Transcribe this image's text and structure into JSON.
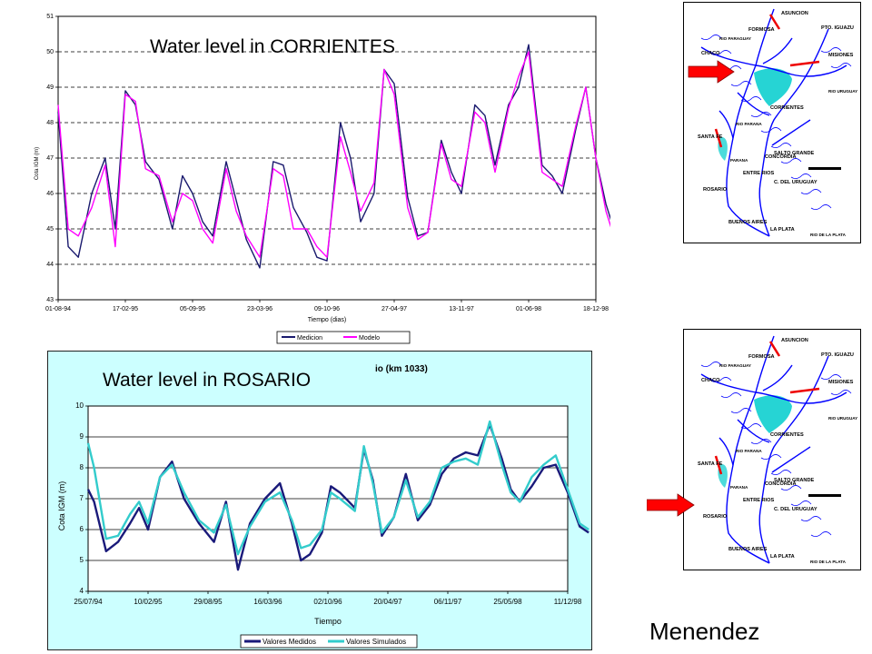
{
  "caption": "Menendez",
  "maps": {
    "labels": [
      "ASUNCION",
      "FORMOSA",
      "PTO. IGUAZU",
      "CHACO",
      "MISIONES",
      "CORRIENTES",
      "SANTA FE",
      "ENTRE RIOS",
      "SALTO GRANDE",
      "CONCORDIA",
      "C. DEL URUGUAY",
      "ROSARIO",
      "BUENOS AIRES",
      "LA PLATA",
      "PARANA",
      "RIO URUGUAY",
      "RIO PARAGUAY",
      "RIO PARANA",
      "RIO DE LA PLATA"
    ],
    "arrow_color": "#ff0000",
    "river_color": "#0000ff",
    "marsh_color": "#00cccc"
  },
  "chart_data": [
    {
      "type": "line",
      "title": "Water level in CORRIENTES",
      "xlabel": "Tiempo (dias)",
      "ylabel": "Cota IGM (m)",
      "xticks": [
        "01-08-94",
        "17-02-95",
        "05-09-95",
        "23-03-96",
        "09-10-96",
        "27-04-97",
        "13-11-97",
        "01-06-98",
        "18-12-98"
      ],
      "ylim": [
        43,
        51
      ],
      "yticks": [
        43,
        44,
        45,
        46,
        47,
        48,
        49,
        50,
        51
      ],
      "grid": "dashed horizontal",
      "legend_position": "bottom-center",
      "x": [
        0,
        0.15,
        0.3,
        0.5,
        0.7,
        0.85,
        1.0,
        1.15,
        1.3,
        1.5,
        1.7,
        1.85,
        2.0,
        2.15,
        2.3,
        2.5,
        2.65,
        2.8,
        3.0,
        3.2,
        3.35,
        3.5,
        3.7,
        3.85,
        4.0,
        4.2,
        4.35,
        4.5,
        4.7,
        4.85,
        5.0,
        5.2,
        5.35,
        5.5,
        5.7,
        5.85,
        6.0,
        6.2,
        6.35,
        6.5,
        6.7,
        6.85,
        7.0,
        7.2,
        7.35,
        7.5,
        7.7,
        7.85,
        8.0,
        8.15,
        8.3,
        8.45
      ],
      "series": [
        {
          "name": "Medicion",
          "color": "#1a1a6e",
          "values": [
            48.3,
            44.5,
            44.2,
            46.0,
            47.0,
            45.0,
            48.9,
            48.5,
            46.9,
            46.4,
            45.0,
            46.5,
            46.0,
            45.2,
            44.8,
            46.9,
            45.8,
            44.7,
            43.9,
            46.9,
            46.8,
            45.6,
            44.9,
            44.2,
            44.1,
            48.0,
            47.0,
            45.2,
            46.0,
            49.5,
            49.1,
            45.9,
            44.8,
            44.9,
            47.5,
            46.6,
            46.0,
            48.5,
            48.2,
            46.8,
            48.5,
            49.0,
            50.2,
            46.8,
            46.5,
            46.0,
            47.8,
            49.0,
            47.0,
            45.7,
            44.8,
            45.6
          ]
        },
        {
          "name": "Modelo",
          "color": "#ff00ff",
          "values": [
            48.5,
            45.0,
            44.8,
            45.6,
            46.8,
            44.5,
            48.8,
            48.6,
            46.7,
            46.5,
            45.2,
            46.0,
            45.8,
            45.0,
            44.6,
            46.7,
            45.5,
            44.8,
            44.2,
            46.7,
            46.5,
            45.0,
            45.0,
            44.5,
            44.2,
            47.6,
            46.6,
            45.5,
            46.3,
            49.5,
            48.8,
            45.6,
            44.7,
            44.9,
            47.4,
            46.4,
            46.2,
            48.3,
            48.0,
            46.6,
            48.4,
            49.3,
            50.0,
            46.6,
            46.4,
            46.2,
            47.9,
            49.0,
            47.0,
            45.5,
            44.6,
            45.3
          ]
        }
      ]
    },
    {
      "type": "line",
      "title": "Water level in ROSARIO",
      "subtitle": "io (km 1033)",
      "xlabel": "Tiempo",
      "ylabel": "Cota IGM (m)",
      "xticks": [
        "25/07/94",
        "10/02/95",
        "29/08/95",
        "16/03/96",
        "02/10/96",
        "20/04/97",
        "06/11/97",
        "25/05/98",
        "11/12/98"
      ],
      "ylim": [
        4,
        10
      ],
      "yticks": [
        4,
        5,
        6,
        7,
        8,
        9,
        10
      ],
      "grid": "solid horizontal",
      "legend_position": "bottom-center",
      "x": [
        0,
        0.1,
        0.3,
        0.5,
        0.7,
        0.85,
        1.0,
        1.2,
        1.4,
        1.6,
        1.85,
        2.1,
        2.3,
        2.5,
        2.7,
        2.95,
        3.2,
        3.4,
        3.55,
        3.7,
        3.9,
        4.05,
        4.2,
        4.45,
        4.6,
        4.75,
        4.9,
        5.1,
        5.3,
        5.5,
        5.7,
        5.9,
        6.1,
        6.3,
        6.5,
        6.7,
        6.9,
        7.05,
        7.2,
        7.4,
        7.6,
        7.8,
        8.0,
        8.2,
        8.35
      ],
      "series": [
        {
          "name": "Valores Medidos",
          "color": "#1a1a7a",
          "values": [
            7.3,
            6.9,
            5.3,
            5.6,
            6.2,
            6.7,
            6.0,
            7.7,
            8.2,
            7.0,
            6.2,
            5.6,
            6.9,
            4.7,
            6.2,
            7.0,
            7.5,
            6.2,
            5.0,
            5.2,
            5.9,
            7.4,
            7.2,
            6.7,
            8.6,
            7.6,
            5.8,
            6.4,
            7.8,
            6.3,
            6.8,
            7.8,
            8.3,
            8.5,
            8.4,
            9.4,
            8.3,
            7.3,
            6.9,
            7.4,
            8.0,
            8.1,
            7.2,
            6.1,
            5.9
          ]
        },
        {
          "name": "Valores Simulados",
          "color": "#33cccc",
          "values": [
            8.8,
            8.0,
            5.7,
            5.8,
            6.5,
            6.9,
            6.2,
            7.7,
            8.1,
            7.2,
            6.3,
            5.9,
            6.8,
            5.2,
            6.1,
            6.9,
            7.2,
            6.3,
            5.4,
            5.5,
            6.0,
            7.2,
            7.0,
            6.6,
            8.7,
            7.5,
            5.9,
            6.4,
            7.6,
            6.4,
            6.9,
            8.0,
            8.2,
            8.3,
            8.1,
            9.5,
            8.1,
            7.2,
            6.9,
            7.7,
            8.1,
            8.4,
            7.3,
            6.2,
            6.0
          ]
        }
      ]
    }
  ]
}
